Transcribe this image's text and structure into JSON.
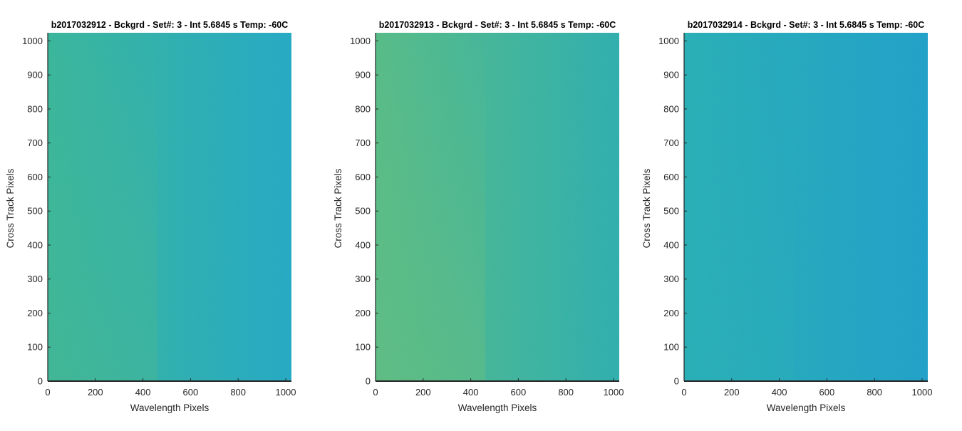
{
  "figure": {
    "colors": {
      "background": "#ffffff",
      "axis": "#262626",
      "text": "#262626",
      "title": "#000000"
    }
  },
  "chart_data": [
    {
      "type": "heatmap",
      "title": "b2017032912 - Bckgrd - Set#: 3 - Int 5.6845 s Temp: -60C",
      "xlabel": "Wavelength Pixels",
      "ylabel": "Cross Track Pixels",
      "xlim": [
        0,
        1024
      ],
      "ylim": [
        0,
        1024
      ],
      "xticks": [
        0,
        200,
        400,
        600,
        800,
        1000
      ],
      "yticks": [
        0,
        100,
        200,
        300,
        400,
        500,
        600,
        700,
        800,
        900,
        1000
      ],
      "grid": false,
      "colormap": "parula",
      "color_gradient": {
        "left_top": "#2db29b",
        "left_bottom": "#3db38f",
        "right_top": "#17a4c8",
        "right_bottom": "#179fc8"
      }
    },
    {
      "type": "heatmap",
      "title": "b2017032913 - Bckgrd - Set#: 3 - Int 5.6845 s Temp: -60C",
      "xlabel": "Wavelength Pixels",
      "ylabel": "Cross Track Pixels",
      "xlim": [
        0,
        1024
      ],
      "ylim": [
        0,
        1024
      ],
      "xticks": [
        0,
        200,
        400,
        600,
        800,
        1000
      ],
      "yticks": [
        0,
        100,
        200,
        300,
        400,
        500,
        600,
        700,
        800,
        900,
        1000
      ],
      "grid": false,
      "colormap": "parula",
      "color_gradient": {
        "left_top": "#4db886",
        "left_bottom": "#5fbb7a",
        "right_top": "#22aab0",
        "right_bottom": "#20a8b6"
      }
    },
    {
      "type": "heatmap",
      "title": "b2017032914 - Bckgrd - Set#: 3 - Int 5.6845 s Temp: -60C",
      "xlabel": "Wavelength Pixels",
      "ylabel": "Cross Track Pixels",
      "xlim": [
        0,
        1024
      ],
      "ylim": [
        0,
        1024
      ],
      "xticks": [
        0,
        200,
        400,
        600,
        800,
        1000
      ],
      "yticks": [
        0,
        100,
        200,
        300,
        400,
        500,
        600,
        700,
        800,
        900,
        1000
      ],
      "grid": false,
      "colormap": "parula",
      "color_gradient": {
        "left_top": "#1aaab8",
        "left_bottom": "#1aa9bb",
        "right_top": "#129bcd",
        "right_bottom": "#1299cd"
      }
    }
  ]
}
